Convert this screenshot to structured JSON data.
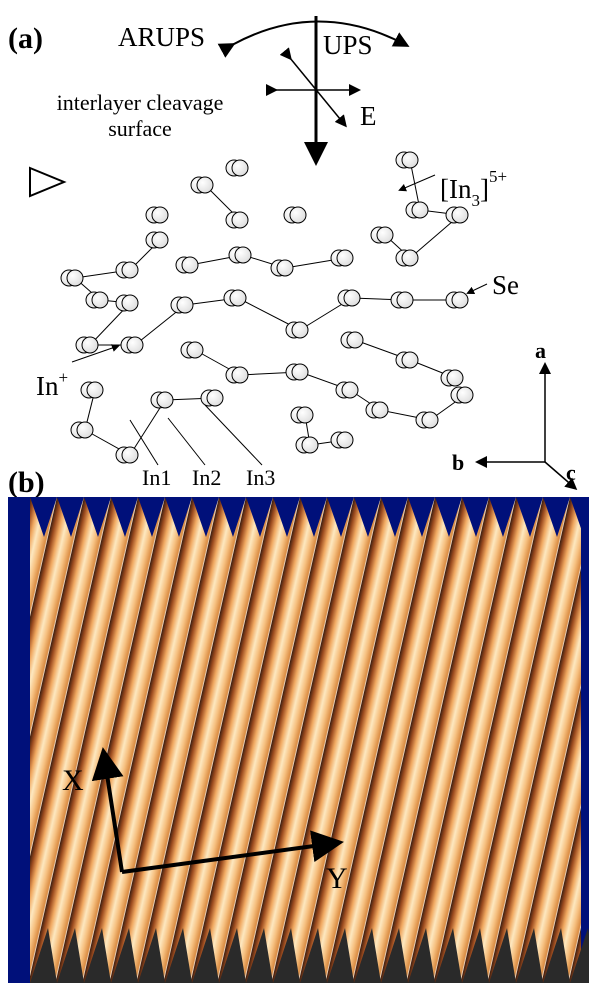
{
  "panel_a": {
    "label": "(a)",
    "arups": "ARUPS",
    "ups": "UPS",
    "field": "E",
    "surface": [
      "interlayer cleavage",
      "surface"
    ],
    "cluster": {
      "open": "[In",
      "sub": "3",
      "close": "]",
      "sup": "5+"
    },
    "selenium": "Se",
    "indium_ion": {
      "base": "In",
      "sup": "+"
    },
    "sites": [
      "In1",
      "In2",
      "In3"
    ],
    "axes": [
      "a",
      "b",
      "c"
    ]
  },
  "panel_b": {
    "label": "(b)",
    "x_axis": "X",
    "y_axis": "Y"
  }
}
